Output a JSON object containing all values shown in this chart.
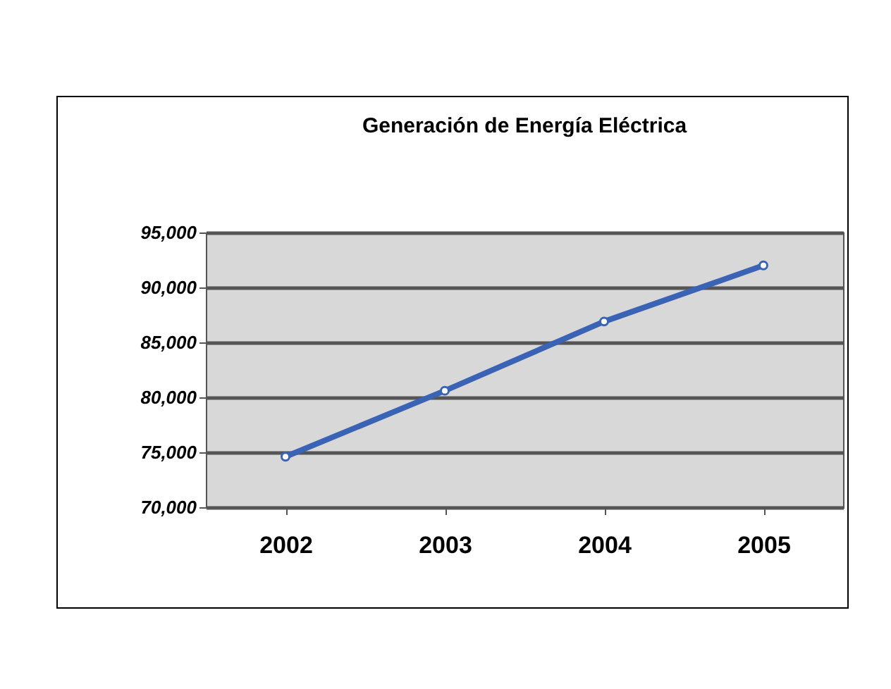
{
  "chart_data": {
    "type": "line",
    "title": "Generación de Energía Eléctrica",
    "categories": [
      "2002",
      "2003",
      "2004",
      "2005"
    ],
    "series": [
      {
        "color": "#3a62b5",
        "values": [
          74600,
          80600,
          86900,
          92000
        ]
      }
    ],
    "ylim": [
      70000,
      95000
    ],
    "yticks": [
      {
        "value": 70000,
        "label": "70,000"
      },
      {
        "value": 75000,
        "label": "75,000"
      },
      {
        "value": 80000,
        "label": "80,000"
      },
      {
        "value": 85000,
        "label": "85,000"
      },
      {
        "value": 90000,
        "label": "90,000"
      },
      {
        "value": 95000,
        "label": "95,000"
      }
    ],
    "grid": "y",
    "marker": "circle",
    "line_style": "solid"
  }
}
